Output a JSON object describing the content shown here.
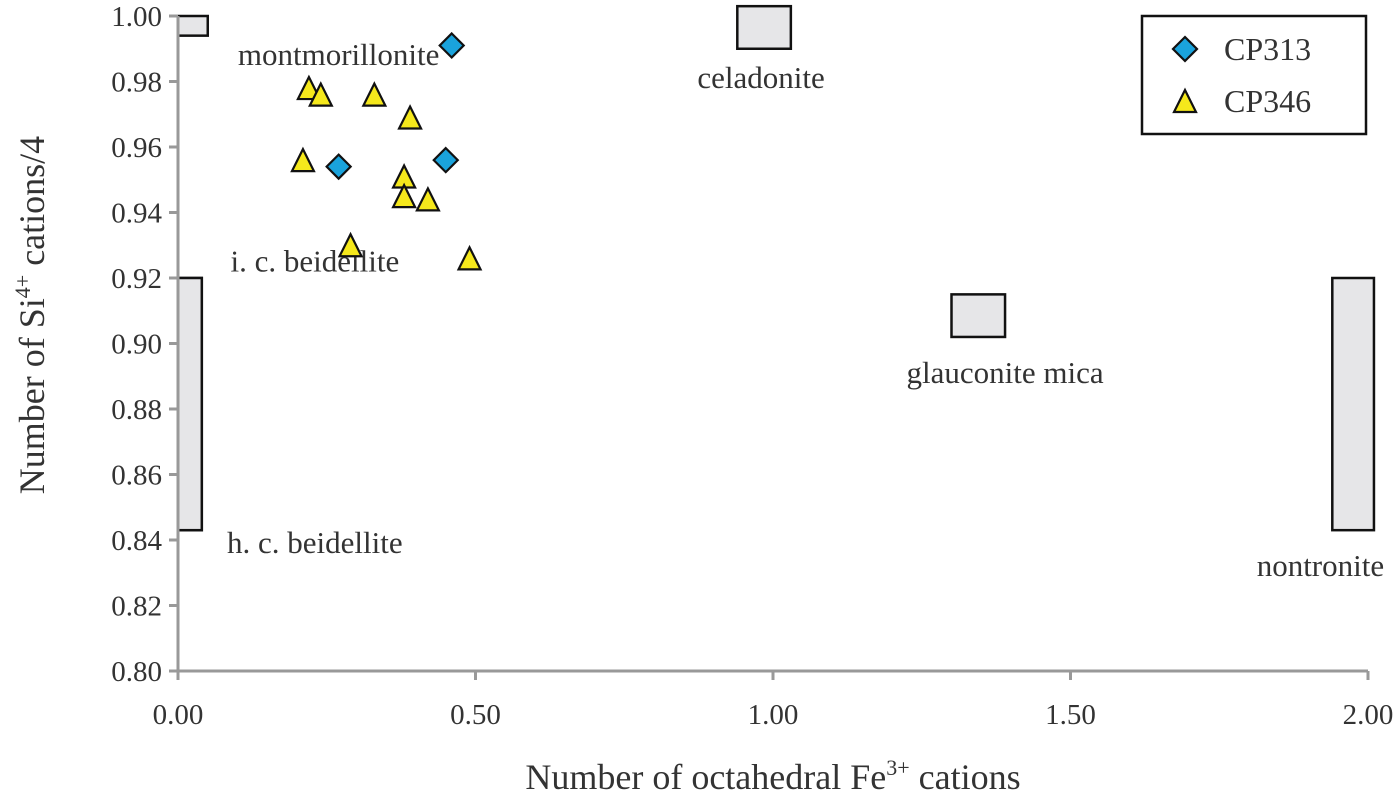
{
  "chart_data": {
    "type": "scatter",
    "title": "",
    "xlabel": {
      "main": "Number of octahedral Fe",
      "sup": "3+",
      "tail": " cations"
    },
    "ylabel": {
      "main": "Number of Si",
      "sup": "4+",
      "tail": " cations/4"
    },
    "xlim": [
      0,
      2
    ],
    "ylim": [
      0.8,
      1.0
    ],
    "x_ticks": [
      "0.00",
      "0.50",
      "1.00",
      "1.50",
      "2.00"
    ],
    "y_ticks": [
      "0.80",
      "0.82",
      "0.84",
      "0.86",
      "0.88",
      "0.90",
      "0.92",
      "0.94",
      "0.96",
      "0.98",
      "1.00"
    ],
    "x_tick_values": [
      0,
      0.5,
      1,
      1.5,
      2
    ],
    "y_tick_values": [
      0.8,
      0.82,
      0.84,
      0.86,
      0.88,
      0.9,
      0.92,
      0.94,
      0.96,
      0.98,
      1.0
    ],
    "grid": false,
    "legend_position": "top-right",
    "series": [
      {
        "name": "CP313",
        "marker": "diamond",
        "color": "#1aa3dc",
        "points": [
          [
            0.46,
            0.991
          ],
          [
            0.27,
            0.954
          ],
          [
            0.45,
            0.956
          ]
        ]
      },
      {
        "name": "CP346",
        "marker": "triangle",
        "color": "#f5e81c",
        "points": [
          [
            0.22,
            0.978
          ],
          [
            0.24,
            0.976
          ],
          [
            0.33,
            0.976
          ],
          [
            0.39,
            0.969
          ],
          [
            0.21,
            0.956
          ],
          [
            0.38,
            0.951
          ],
          [
            0.38,
            0.945
          ],
          [
            0.42,
            0.944
          ],
          [
            0.29,
            0.93
          ],
          [
            0.49,
            0.926
          ]
        ]
      }
    ],
    "composition_fields": [
      {
        "name": "montmorillonite",
        "x": [
          0.0,
          0.05
        ],
        "y": [
          0.994,
          1.0
        ],
        "label_anchor": [
          0.27,
          0.985
        ]
      },
      {
        "name": "celadonite",
        "x": [
          0.94,
          1.03
        ],
        "y": [
          0.99,
          1.003
        ],
        "label_anchor": [
          0.98,
          0.978
        ]
      },
      {
        "name": "i. c. beidellite",
        "x": [
          0.0,
          0.04
        ],
        "y": [
          0.843,
          0.92
        ],
        "label_anchor": [
          0.23,
          0.922
        ]
      },
      {
        "name": "h. c. beidellite",
        "x": [
          0.0,
          0.04
        ],
        "y": [
          0.843,
          0.92
        ],
        "label_anchor": [
          0.23,
          0.836
        ]
      },
      {
        "name": "glauconite mica",
        "x": [
          1.3,
          1.39
        ],
        "y": [
          0.902,
          0.915
        ],
        "label_anchor": [
          1.39,
          0.888
        ]
      },
      {
        "name": "nontronite",
        "x": [
          1.94,
          2.01
        ],
        "y": [
          0.843,
          0.92
        ],
        "label_anchor": [
          1.92,
          0.829
        ]
      }
    ]
  }
}
